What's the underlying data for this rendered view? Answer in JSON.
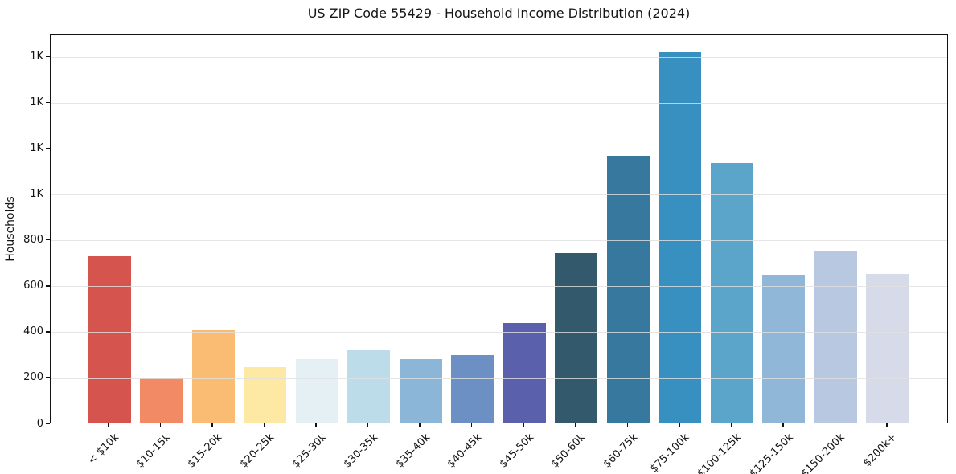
{
  "chart_data": {
    "type": "bar",
    "title": "US ZIP Code 55429 - Household Income Distribution (2024)",
    "xlabel": "",
    "ylabel": "Households",
    "categories": [
      "< $10k",
      "$10-15k",
      "$15-20k",
      "$20-25k",
      "$25-30k",
      "$30-35k",
      "$35-40k",
      "$40-45k",
      "$45-50k",
      "$50-60k",
      "$60-75k",
      "$75-100k",
      "$100-125k",
      "$125-150k",
      "$150-200k",
      "$200k+"
    ],
    "values": [
      725,
      194,
      402,
      242,
      278,
      316,
      278,
      293,
      435,
      741,
      1163,
      1617,
      1133,
      645,
      751,
      649
    ],
    "bar_colors": [
      "#d5544e",
      "#f28a66",
      "#fabc72",
      "#fde8a4",
      "#e5f0f5",
      "#bddcea",
      "#8cb6d8",
      "#6c90c4",
      "#5a60ac",
      "#33596c",
      "#36789e",
      "#3890c0",
      "#5ba4ca",
      "#90b7d8",
      "#b9c8e1",
      "#d7dae8"
    ],
    "ylim": [
      0,
      1700
    ],
    "yticks": [
      {
        "value": 0,
        "label": "0"
      },
      {
        "value": 200,
        "label": "200"
      },
      {
        "value": 400,
        "label": "400"
      },
      {
        "value": 600,
        "label": "600"
      },
      {
        "value": 800,
        "label": "800"
      },
      {
        "value": 1000,
        "label": "1K"
      },
      {
        "value": 1200,
        "label": "1K"
      },
      {
        "value": 1400,
        "label": "1K"
      },
      {
        "value": 1600,
        "label": "1K"
      }
    ],
    "grid": "horizontal",
    "gridline_color": "#e7e7e7",
    "legend": "none",
    "background": "#ffffff"
  }
}
